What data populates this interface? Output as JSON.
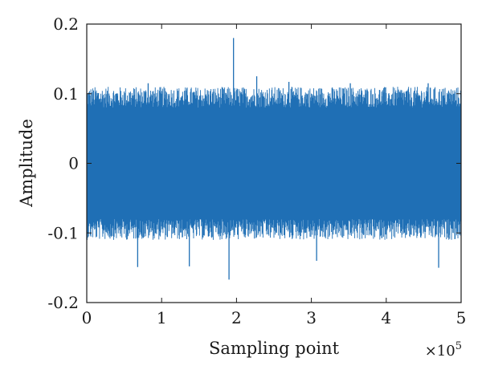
{
  "chart_data": {
    "type": "line",
    "title": "",
    "xlabel": "Sampling point",
    "ylabel": "Amplitude",
    "x_exponent_label": "×10",
    "x_exponent_power": "5",
    "xlim": [
      0,
      5
    ],
    "ylim": [
      -0.2,
      0.2
    ],
    "x_scale_multiplier": 100000,
    "xticks": [
      0,
      1,
      2,
      3,
      4,
      5
    ],
    "xtick_labels": [
      "0",
      "1",
      "2",
      "3",
      "4",
      "5"
    ],
    "yticks": [
      -0.2,
      -0.1,
      0,
      0.1,
      0.2
    ],
    "ytick_labels": [
      "-0.2",
      "-0.1",
      "0",
      "0.1",
      "0.2"
    ],
    "grid": false,
    "series": [
      {
        "color": "#1f6fb5",
        "description_values": {
          "dense_band": [
            -0.08,
            0.08
          ],
          "typical_envelope": [
            -0.11,
            0.11
          ],
          "notable_peaks": [
            {
              "x": 1.96,
              "y": 0.18
            },
            {
              "x": 1.9,
              "y": -0.167
            },
            {
              "x": 2.27,
              "y": 0.125
            },
            {
              "x": 1.37,
              "y": -0.148
            },
            {
              "x": 0.68,
              "y": -0.149
            },
            {
              "x": 4.7,
              "y": -0.15
            },
            {
              "x": 3.07,
              "y": -0.14
            },
            {
              "x": 2.7,
              "y": 0.117
            },
            {
              "x": 0.82,
              "y": 0.115
            },
            {
              "x": 3.52,
              "y": 0.115
            },
            {
              "x": 4.56,
              "y": 0.115
            }
          ]
        }
      }
    ]
  }
}
